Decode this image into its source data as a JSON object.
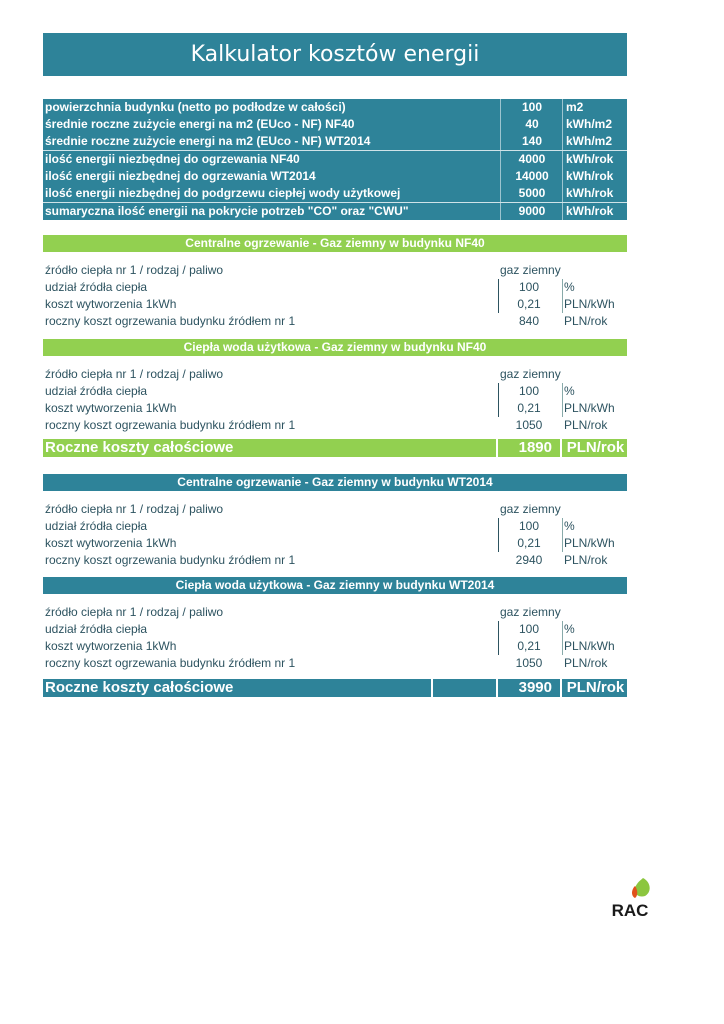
{
  "title": "Kalkulator kosztów energii",
  "summary": [
    {
      "label": "powierzchnia budynku (netto po podłodze w całości)",
      "value": "100",
      "unit": "m2"
    },
    {
      "label": "średnie roczne zużycie energi na m2 (EUco - NF) NF40",
      "value": "40",
      "unit": "kWh/m2"
    },
    {
      "label": "średnie roczne zużycie energi na m2 (EUco - NF) WT2014",
      "value": "140",
      "unit": "kWh/m2"
    },
    {
      "label": "ilość energii niezbędnej do ogrzewania NF40",
      "value": "4000",
      "unit": "kWh/rok"
    },
    {
      "label": "ilość energii niezbędnej do ogrzewania WT2014",
      "value": "14000",
      "unit": "kWh/rok"
    },
    {
      "label": "ilość energii niezbędnej do podgrzewu ciepłej wody użytkowej",
      "value": "5000",
      "unit": "kWh/rok"
    },
    {
      "label": "sumaryczna ilość energii na pokrycie potrzeb \"CO\" oraz \"CWU\"",
      "value": "9000",
      "unit": "kWh/rok"
    }
  ],
  "sections": [
    {
      "header": "Centralne ogrzewanie - Gaz ziemny w budynku NF40",
      "source_label": "źródło ciepła nr 1 / rodzaj / paliwo",
      "source_value": "gaz ziemny",
      "rows": [
        {
          "label": "udział źródła ciepła",
          "value": "100",
          "unit": "%"
        },
        {
          "label": "koszt wytworzenia 1kWh",
          "value": "0,21",
          "unit": "PLN/kWh"
        },
        {
          "label": "roczny koszt ogrzewania budynku źródłem nr 1",
          "value": "840",
          "unit": "PLN/rok"
        }
      ]
    },
    {
      "header": "Ciepła woda użytkowa - Gaz ziemny  w budynku NF40",
      "source_label": "źródło ciepła nr 1 / rodzaj / paliwo",
      "source_value": "gaz ziemny",
      "rows": [
        {
          "label": "udział źródła ciepła",
          "value": "100",
          "unit": "%"
        },
        {
          "label": "koszt wytworzenia 1kWh",
          "value": "0,21",
          "unit": "PLN/kWh"
        },
        {
          "label": "roczny koszt ogrzewania budynku źródłem nr 1",
          "value": "1050",
          "unit": "PLN/rok"
        }
      ]
    },
    {
      "header": "Centralne ogrzewanie - Gaz ziemny w budynku WT2014",
      "source_label": "źródło ciepła nr 1 / rodzaj / paliwo",
      "source_value": "gaz ziemny",
      "rows": [
        {
          "label": "udział źródła ciepła",
          "value": "100",
          "unit": "%"
        },
        {
          "label": "koszt wytworzenia 1kWh",
          "value": "0,21",
          "unit": "PLN/kWh"
        },
        {
          "label": "roczny koszt ogrzewania budynku źródłem nr 1",
          "value": "2940",
          "unit": "PLN/rok"
        }
      ]
    },
    {
      "header": "Ciepła woda użytkowa - Gaz ziemny w budynku WT2014",
      "source_label": "źródło ciepła nr 1 / rodzaj / paliwo",
      "source_value": "gaz ziemny",
      "rows": [
        {
          "label": "udział źródła ciepła",
          "value": "100",
          "unit": "%"
        },
        {
          "label": "koszt wytworzenia 1kWh",
          "value": "0,21",
          "unit": "PLN/kWh"
        },
        {
          "label": "roczny koszt ogrzewania budynku źródłem nr 1",
          "value": "1050",
          "unit": "PLN/rok"
        }
      ]
    }
  ],
  "totals": [
    {
      "label": "Roczne koszty całościowe",
      "value": "1890",
      "unit": "PLN/rok"
    },
    {
      "label": "Roczne koszty całościowe",
      "value": "3990",
      "unit": "PLN/rok"
    }
  ],
  "logo": {
    "text": "RAC"
  },
  "colors": {
    "teal": "#2e8399",
    "green": "#92d050",
    "text": "#2d5360",
    "logo_orange": "#e0521c",
    "logo_green": "#8cc63f"
  }
}
